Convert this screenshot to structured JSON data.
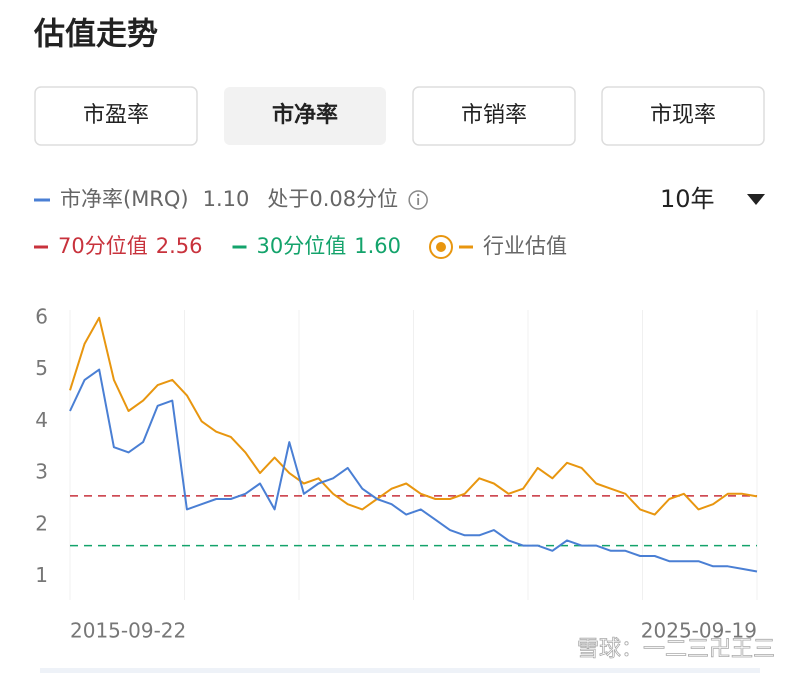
{
  "header": {
    "title": "估值走势"
  },
  "tabs": [
    {
      "label": "市盈率",
      "selected": false
    },
    {
      "label": "市净率",
      "selected": true
    },
    {
      "label": "市销率",
      "selected": false
    },
    {
      "label": "市现率",
      "selected": false
    }
  ],
  "period": "10年",
  "chart_data": {
    "type": "line",
    "categories": [
      "2015-09-22",
      null,
      null,
      null,
      null,
      null,
      null,
      null,
      null,
      null,
      null,
      null,
      null,
      null,
      null,
      null,
      null,
      null,
      null,
      null,
      null,
      null,
      null,
      null,
      null,
      null,
      null,
      null,
      null,
      null,
      null,
      null,
      null,
      null,
      null,
      null,
      null,
      null,
      null,
      null,
      null,
      null,
      null,
      null,
      null,
      null,
      null,
      "2025-09-19"
    ],
    "series": [
      {
        "name": "市净率(MRQ)",
        "color": "#4a7fd4",
        "latest": {
          "value": 1.1,
          "label": "1.10"
        },
        "percentile_text": "处于0.08分位",
        "values": [
          4.2,
          4.8,
          5.0,
          3.5,
          3.4,
          3.6,
          4.3,
          4.4,
          2.3,
          2.4,
          2.5,
          2.5,
          2.6,
          2.8,
          2.3,
          3.6,
          2.6,
          2.8,
          2.9,
          3.1,
          2.7,
          2.5,
          2.4,
          2.2,
          2.3,
          2.1,
          1.9,
          1.8,
          1.8,
          1.9,
          1.7,
          1.6,
          1.6,
          1.5,
          1.7,
          1.6,
          1.6,
          1.5,
          1.5,
          1.4,
          1.4,
          1.3,
          1.3,
          1.3,
          1.2,
          1.2,
          1.15,
          1.1
        ]
      },
      {
        "name": "行业估值",
        "color": "#e8960f",
        "values": [
          4.6,
          5.5,
          6.0,
          4.8,
          4.2,
          4.4,
          4.7,
          4.8,
          4.5,
          4.0,
          3.8,
          3.7,
          3.4,
          3.0,
          3.3,
          3.0,
          2.8,
          2.9,
          2.6,
          2.4,
          2.3,
          2.5,
          2.7,
          2.8,
          2.6,
          2.5,
          2.5,
          2.6,
          2.9,
          2.8,
          2.6,
          2.7,
          3.1,
          2.9,
          3.2,
          3.1,
          2.8,
          2.7,
          2.6,
          2.3,
          2.2,
          2.5,
          2.6,
          2.3,
          2.4,
          2.6,
          2.6,
          2.55
        ]
      }
    ],
    "reference_lines": [
      {
        "name": "70分位值",
        "value": 2.56,
        "value_label": "2.56",
        "color": "#c8323c"
      },
      {
        "name": "30分位值",
        "value": 1.6,
        "value_label": "1.60",
        "color": "#13a36b"
      }
    ],
    "ylim": [
      0.55,
      6.15
    ],
    "yticks": [
      1,
      2,
      3,
      4,
      5,
      6
    ]
  },
  "watermark": "雪球：一二三卍王三"
}
